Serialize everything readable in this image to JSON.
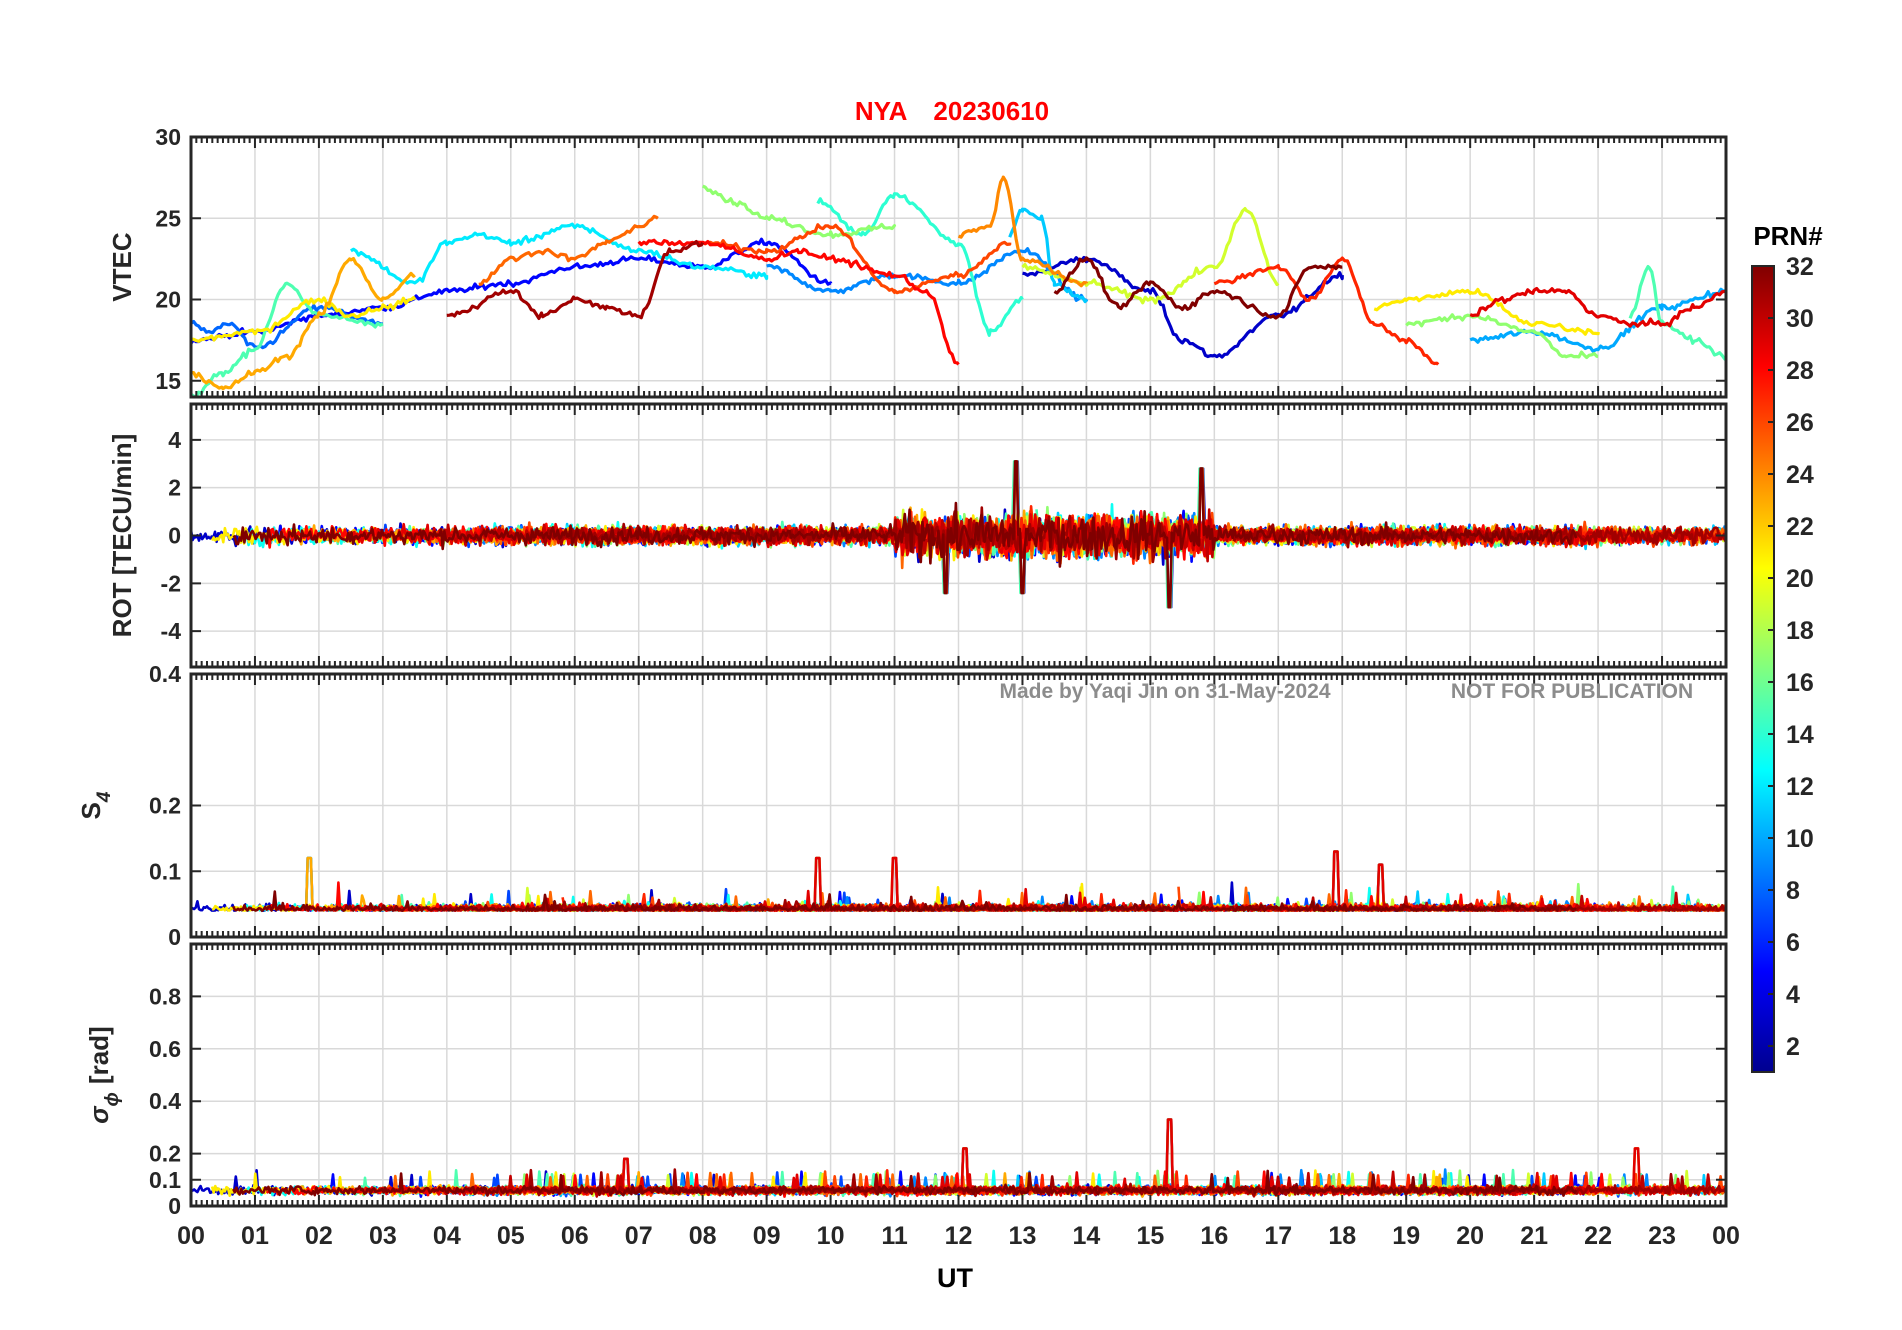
{
  "figure": {
    "title_station": "NYA",
    "title_date": "20230610",
    "title_color": "#ff0000",
    "watermark_author": "Made by Yaqi Jin on 31-May-2024",
    "watermark_notice": "NOT FOR PUBLICATION",
    "watermark_color": "#8c8c8c",
    "xlabel": "UT",
    "x_tick_labels": [
      "00",
      "01",
      "02",
      "03",
      "04",
      "05",
      "06",
      "07",
      "08",
      "09",
      "10",
      "11",
      "12",
      "13",
      "14",
      "15",
      "16",
      "17",
      "18",
      "19",
      "20",
      "21",
      "22",
      "23",
      "00"
    ]
  },
  "colorbar": {
    "label": "PRN#",
    "tick_labels": [
      "2",
      "4",
      "6",
      "8",
      "10",
      "12",
      "14",
      "16",
      "18",
      "20",
      "22",
      "24",
      "26",
      "28",
      "30",
      "32"
    ],
    "range": [
      1,
      32
    ],
    "colormap": "jet",
    "colormap_stops": [
      "#00008f",
      "#0000ff",
      "#0080ff",
      "#00ffff",
      "#80ff80",
      "#ffff00",
      "#ff8000",
      "#ff0000",
      "#800000"
    ]
  },
  "chart_data": [
    {
      "type": "line",
      "name": "vtec",
      "ylabel": "VTEC",
      "xlim": [
        0,
        24
      ],
      "ylim": [
        14,
        30
      ],
      "y_ticks": [
        15,
        20,
        25,
        30
      ],
      "y_tick_labels": [
        "15",
        "20",
        "25",
        "30"
      ],
      "grid": true,
      "series_note": "one line per GPS PRN 1-32, colored by PRN; approximate traces",
      "series": [
        {
          "prn": 3,
          "x": [
            13.0,
            14.0,
            15.0,
            15.5,
            16.0,
            17.0,
            18.0
          ],
          "y": [
            21.5,
            22.5,
            20.5,
            17.5,
            16.5,
            19.0,
            21.5
          ]
        },
        {
          "prn": 5,
          "x": [
            0.0,
            1.0,
            2.0,
            3.0,
            4.0,
            5.0,
            6.0,
            7.0,
            8.0,
            9.0,
            10.0
          ],
          "y": [
            17.5,
            18.0,
            19.0,
            19.5,
            20.5,
            21.0,
            22.0,
            22.5,
            22.0,
            23.5,
            21.0
          ]
        },
        {
          "prn": 8,
          "x": [
            0.0,
            0.3,
            0.6,
            1.0,
            2.0,
            3.0
          ],
          "y": [
            18.5,
            18.0,
            18.5,
            17.0,
            19.5,
            18.5
          ]
        },
        {
          "prn": 9,
          "x": [
            9.0,
            10.0,
            11.0,
            12.0,
            13.0,
            14.0
          ],
          "y": [
            22.0,
            20.5,
            21.5,
            21.0,
            23.0,
            20.0
          ]
        },
        {
          "prn": 10,
          "x": [
            20.0,
            21.0,
            22.0,
            23.0,
            24.0
          ],
          "y": [
            17.5,
            18.0,
            17.0,
            19.5,
            20.5
          ]
        },
        {
          "prn": 11,
          "x": [
            12.8,
            13.0,
            13.3,
            13.5,
            14.0
          ],
          "y": [
            24.0,
            25.5,
            25.0,
            21.0,
            20.0
          ]
        },
        {
          "prn": 12,
          "x": [
            2.5,
            3.5,
            4.0,
            4.5,
            5.0,
            6.0,
            7.0,
            8.0,
            9.0
          ],
          "y": [
            23.0,
            21.0,
            23.5,
            24.0,
            23.5,
            24.5,
            23.0,
            22.0,
            21.5
          ]
        },
        {
          "prn": 14,
          "x": [
            9.8,
            10.5,
            11.0,
            12.0,
            12.5,
            13.0
          ],
          "y": [
            26.0,
            24.0,
            26.5,
            23.5,
            18.0,
            20.0
          ]
        },
        {
          "prn": 15,
          "x": [
            0.0,
            0.5,
            1.0,
            1.5,
            2.0,
            3.0
          ],
          "y": [
            14.0,
            15.5,
            17.0,
            21.0,
            19.0,
            18.5
          ]
        },
        {
          "prn": 15,
          "x": [
            22.5,
            22.8,
            23.0,
            23.5,
            24.0
          ],
          "y": [
            19.0,
            22.0,
            18.5,
            17.5,
            16.5
          ]
        },
        {
          "prn": 17,
          "x": [
            8.0,
            8.5,
            9.0,
            10.0,
            11.0
          ],
          "y": [
            27.0,
            26.0,
            25.0,
            24.0,
            24.5
          ]
        },
        {
          "prn": 17,
          "x": [
            19.0,
            20.0,
            21.0,
            21.5,
            22.0
          ],
          "y": [
            18.5,
            19.0,
            18.0,
            16.5,
            16.5
          ]
        },
        {
          "prn": 19,
          "x": [
            13.0,
            14.0,
            15.0,
            16.0,
            16.5,
            17.0
          ],
          "y": [
            22.0,
            21.0,
            20.0,
            22.0,
            25.5,
            21.0
          ]
        },
        {
          "prn": 21,
          "x": [
            0.0,
            1.0,
            2.0,
            2.5,
            3.0,
            3.5
          ],
          "y": [
            17.5,
            18.0,
            20.0,
            19.0,
            19.5,
            20.0
          ]
        },
        {
          "prn": 21,
          "x": [
            18.5,
            19.0,
            20.0,
            21.0,
            22.0
          ],
          "y": [
            19.5,
            20.0,
            20.5,
            18.5,
            18.0
          ]
        },
        {
          "prn": 23,
          "x": [
            0.0,
            0.5,
            1.0,
            1.5,
            2.0,
            2.5,
            3.0,
            3.5
          ],
          "y": [
            15.5,
            14.5,
            15.5,
            16.5,
            19.0,
            22.5,
            20.0,
            21.5
          ]
        },
        {
          "prn": 24,
          "x": [
            12.0,
            12.5,
            12.7,
            13.0,
            14.0
          ],
          "y": [
            24.0,
            24.5,
            27.5,
            22.5,
            21.0
          ]
        },
        {
          "prn": 25,
          "x": [
            4.5,
            5.0,
            5.5,
            6.0,
            6.5,
            7.0,
            7.3
          ],
          "y": [
            21.0,
            22.5,
            23.0,
            22.5,
            23.5,
            24.5,
            25.0
          ]
        },
        {
          "prn": 26,
          "x": [
            8.0,
            9.0,
            10.0,
            11.0,
            12.0,
            12.8
          ],
          "y": [
            23.5,
            23.0,
            24.5,
            20.5,
            21.5,
            23.5
          ]
        },
        {
          "prn": 27,
          "x": [
            16.0,
            17.0,
            17.5,
            18.0,
            18.5,
            19.0,
            19.5
          ],
          "y": [
            21.0,
            22.0,
            20.0,
            22.5,
            18.5,
            17.5,
            16.0
          ]
        },
        {
          "prn": 28,
          "x": [
            7.0,
            8.0,
            9.0,
            9.5,
            10.0,
            11.0,
            11.5,
            12.0
          ],
          "y": [
            23.5,
            23.5,
            22.5,
            23.0,
            22.5,
            21.5,
            20.5,
            16.0
          ]
        },
        {
          "prn": 29,
          "x": [
            20.0,
            20.5,
            21.0,
            21.5,
            22.0,
            22.5,
            23.0,
            23.5,
            24.0
          ],
          "y": [
            19.0,
            20.0,
            20.5,
            20.5,
            19.0,
            18.5,
            18.5,
            19.5,
            20.5
          ]
        },
        {
          "prn": 31,
          "x": [
            4.0,
            5.0,
            5.5,
            6.0,
            6.5,
            7.0,
            7.5,
            8.0
          ],
          "y": [
            19.0,
            20.5,
            19.0,
            20.0,
            19.5,
            19.0,
            23.0,
            23.5
          ]
        },
        {
          "prn": 32,
          "x": [
            13.5,
            14.0,
            14.5,
            15.0,
            15.5,
            16.0,
            17.0,
            17.5,
            18.0
          ],
          "y": [
            20.5,
            22.5,
            19.5,
            21.0,
            19.5,
            20.5,
            19.0,
            22.0,
            22.0
          ]
        }
      ]
    },
    {
      "type": "line",
      "name": "rot",
      "ylabel": "ROT [TECU/min]",
      "xlim": [
        0,
        24
      ],
      "ylim": [
        -5.5,
        5.5
      ],
      "y_ticks": [
        -4,
        -2,
        0,
        2,
        4
      ],
      "y_tick_labels": [
        "-4",
        "-2",
        "0",
        "2",
        "4"
      ],
      "grid": true,
      "summary": {
        "baseline": 0,
        "typical_spread": [
          -1,
          1
        ],
        "disturbed_interval_UT": [
          11,
          16
        ],
        "extremes": [
          {
            "x": 12.9,
            "y": 3.1
          },
          {
            "x": 15.8,
            "y": 2.8
          },
          {
            "x": 15.3,
            "y": -3.0
          },
          {
            "x": 11.8,
            "y": -2.4
          },
          {
            "x": 13.0,
            "y": -2.4
          }
        ]
      }
    },
    {
      "type": "line",
      "name": "s4",
      "ylabel": "S",
      "ylabel_subscript": "4",
      "xlim": [
        0,
        24
      ],
      "ylim": [
        0,
        0.4
      ],
      "y_ticks": [
        0,
        0.1,
        0.2,
        0.4
      ],
      "y_tick_labels": [
        "0",
        "0.1",
        "0.2",
        "0.4"
      ],
      "grid": true,
      "summary": {
        "baseline": 0.04,
        "typical_spread": [
          0.03,
          0.07
        ],
        "peaks": [
          {
            "x": 1.85,
            "y": 0.12
          },
          {
            "x": 9.8,
            "y": 0.12
          },
          {
            "x": 11.0,
            "y": 0.12
          },
          {
            "x": 17.9,
            "y": 0.13
          },
          {
            "x": 18.6,
            "y": 0.11
          }
        ]
      }
    },
    {
      "type": "line",
      "name": "sigma_phi",
      "ylabel": "σ",
      "ylabel_subscript": "ϕ",
      "ylabel_unit": "[rad]",
      "xlim": [
        0,
        24
      ],
      "ylim": [
        0,
        1
      ],
      "y_ticks": [
        0,
        0.1,
        0.2,
        0.4,
        0.6,
        0.8
      ],
      "y_tick_labels": [
        "0",
        "0.1",
        "0.2",
        "0.4",
        "0.6",
        "0.8"
      ],
      "grid": true,
      "summary": {
        "baseline": 0.06,
        "typical_spread": [
          0.03,
          0.12
        ],
        "peaks": [
          {
            "x": 15.3,
            "y": 0.33
          },
          {
            "x": 12.1,
            "y": 0.22
          },
          {
            "x": 22.6,
            "y": 0.22
          },
          {
            "x": 6.8,
            "y": 0.18
          }
        ]
      }
    }
  ]
}
